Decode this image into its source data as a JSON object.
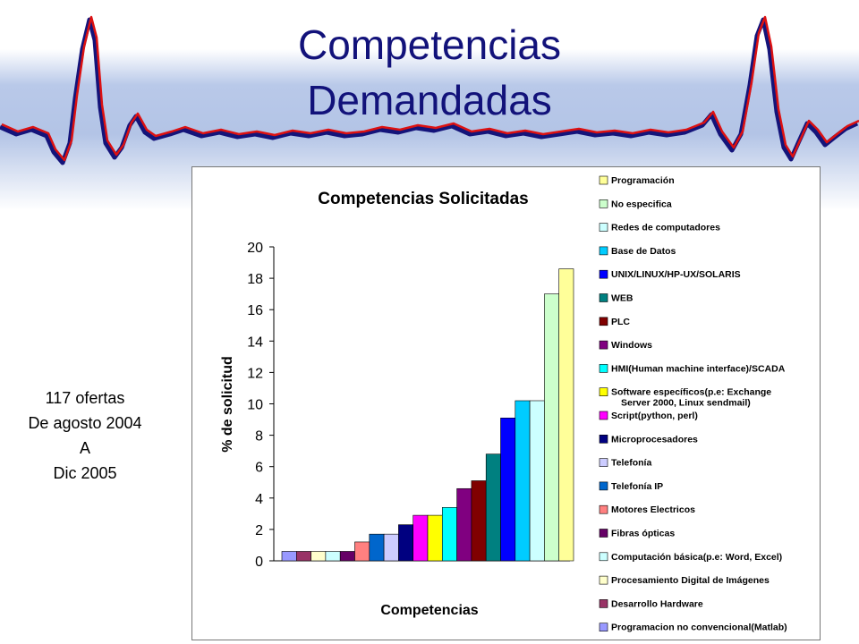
{
  "slide": {
    "title_line1": "Competencias",
    "title_line2": "Demandadas",
    "note_lines": [
      "117 ofertas",
      "De agosto 2004",
      "A",
      "Dic 2005"
    ]
  },
  "chart_data": {
    "type": "bar",
    "title": "Competencias Solicitadas",
    "xlabel": "Competencias",
    "ylabel": "% de solicitud",
    "ylim": [
      0,
      20
    ],
    "yticks": [
      0,
      2,
      4,
      6,
      8,
      10,
      12,
      14,
      16,
      18,
      20
    ],
    "grid": false,
    "legend_position": "right",
    "series": [
      {
        "name": "Programacion no convencional(Matlab)",
        "value": 0.6,
        "color": "#9999ff"
      },
      {
        "name": "Desarrollo Hardware",
        "value": 0.6,
        "color": "#993366"
      },
      {
        "name": "Procesamiento Digital de Imágenes",
        "value": 0.6,
        "color": "#ffffcc"
      },
      {
        "name": "Computación básica(p.e: Word, Excel)",
        "value": 0.6,
        "color": "#ccffff"
      },
      {
        "name": "Fibras ópticas",
        "value": 0.6,
        "color": "#660066"
      },
      {
        "name": "Motores Electricos",
        "value": 1.2,
        "color": "#ff8080"
      },
      {
        "name": "Telefonía IP",
        "value": 1.7,
        "color": "#0066cc"
      },
      {
        "name": "Telefonía",
        "value": 1.7,
        "color": "#ccccff"
      },
      {
        "name": "Microprocesadores",
        "value": 2.3,
        "color": "#000080"
      },
      {
        "name": "Script(python, perl)",
        "value": 2.9,
        "color": "#ff00ff"
      },
      {
        "name": "Software específicos(p.e: Exchange Server 2000, Linux sendmail)",
        "value": 2.9,
        "color": "#ffff00"
      },
      {
        "name": "HMI(Human machine interface)/SCADA",
        "value": 3.4,
        "color": "#00ffff"
      },
      {
        "name": "Windows",
        "value": 4.6,
        "color": "#800080"
      },
      {
        "name": "PLC",
        "value": 5.1,
        "color": "#800000"
      },
      {
        "name": "WEB",
        "value": 6.8,
        "color": "#008080"
      },
      {
        "name": "UNIX/LINUX/HP-UX/SOLARIS",
        "value": 9.1,
        "color": "#0000ff"
      },
      {
        "name": "Base de Datos",
        "value": 10.2,
        "color": "#00ccff"
      },
      {
        "name": "Redes de computadores",
        "value": 10.2,
        "color": "#ccffff"
      },
      {
        "name": "No especifica",
        "value": 17.0,
        "color": "#ccffcc"
      },
      {
        "name": "Programación",
        "value": 18.6,
        "color": "#ffff99"
      }
    ]
  }
}
